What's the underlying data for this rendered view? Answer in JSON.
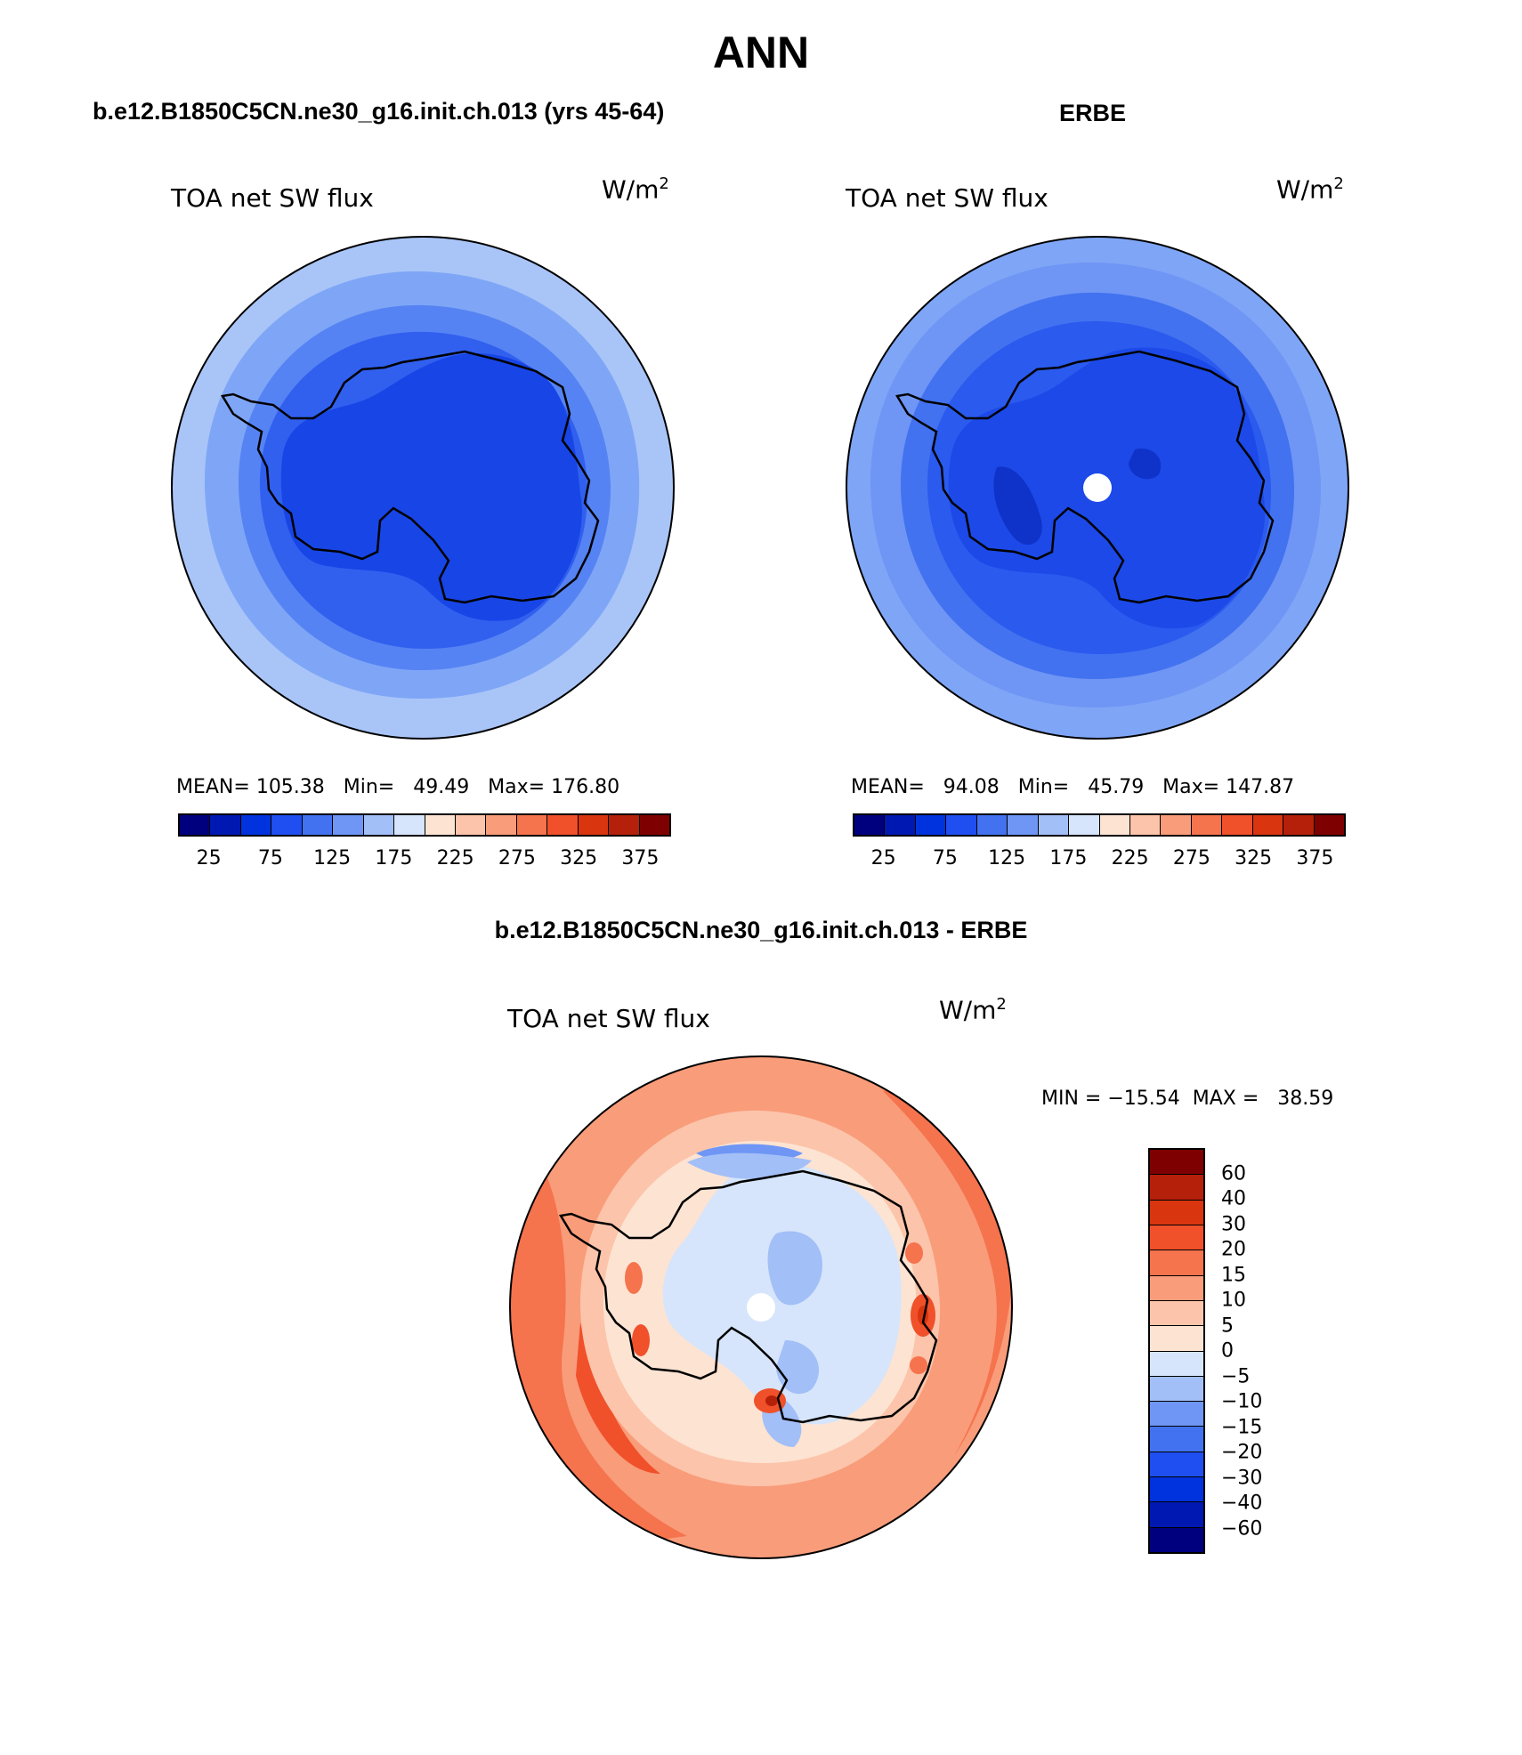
{
  "header": {
    "season": "ANN",
    "model_title": "b.e12.B1850C5CN.ne30_g16.init.ch.013 (yrs 45-64)",
    "obs_title": "ERBE",
    "diff_title": "b.e12.B1850C5CN.ne30_g16.init.ch.013 - ERBE"
  },
  "panels": {
    "model": {
      "variable": "TOA net SW flux",
      "unit_base": "W/m",
      "unit_exp": "2",
      "stats": "MEAN= 105.38   Min=   49.49   Max= 176.80"
    },
    "obs": {
      "variable": "TOA net SW flux",
      "unit_base": "W/m",
      "unit_exp": "2",
      "stats": "MEAN=   94.08   Min=   45.79   Max= 147.87"
    },
    "diff": {
      "variable": "TOA net SW flux",
      "unit_base": "W/m",
      "unit_exp": "2",
      "stats": "MIN = −15.54  MAX =   38.59"
    }
  },
  "colorbars": {
    "abs": {
      "colors": [
        "#00007f",
        "#0018b2",
        "#0033dd",
        "#1f4ff0",
        "#4272f0",
        "#6f96f5",
        "#a2bff7",
        "#d6e5fb",
        "#fde3d2",
        "#fcc4aa",
        "#f99c7a",
        "#f5734d",
        "#f0502a",
        "#d9350f",
        "#b5200a",
        "#7f0000"
      ],
      "ticks": [
        "25",
        "75",
        "125",
        "175",
        "225",
        "275",
        "325",
        "375"
      ]
    },
    "diff": {
      "colors": [
        "#7f0000",
        "#b5200a",
        "#d9350f",
        "#f0502a",
        "#f5734d",
        "#f99c7a",
        "#fcc4aa",
        "#fde3d2",
        "#d6e5fb",
        "#a2bff7",
        "#6f96f5",
        "#4272f0",
        "#1f4ff0",
        "#0033dd",
        "#0018b2",
        "#00007f"
      ],
      "ticks": [
        "60",
        "40",
        "30",
        "20",
        "15",
        "10",
        "5",
        "0",
        "−5",
        "−10",
        "−15",
        "−20",
        "−30",
        "−40",
        "−60"
      ]
    }
  },
  "maps": {
    "model": {
      "projection": "south-polar stereographic",
      "fields": [
        "light blue outer ocean",
        "blue Antarctic interior"
      ]
    },
    "obs": {
      "projection": "south-polar stereographic",
      "missing_pole": true
    },
    "diff": {
      "projection": "south-polar stereographic",
      "missing_pole": true
    }
  }
}
